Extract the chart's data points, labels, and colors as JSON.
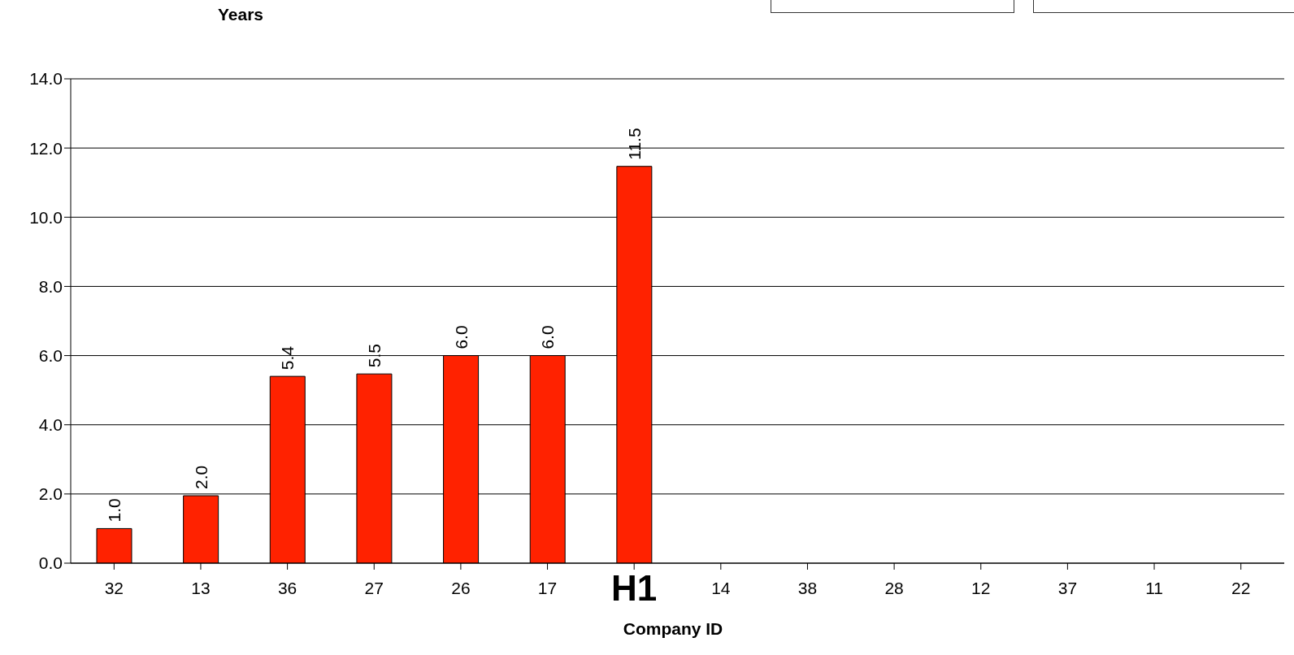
{
  "chart_data": {
    "type": "bar",
    "ylabel": "Years",
    "xlabel": "Company ID",
    "categories": [
      "32",
      "13",
      "36",
      "27",
      "26",
      "17",
      "H1",
      "14",
      "38",
      "28",
      "12",
      "37",
      "11",
      "22"
    ],
    "values": [
      1.0,
      1.95,
      5.4,
      5.47,
      6.0,
      6.0,
      11.47,
      null,
      null,
      null,
      null,
      null,
      null,
      null
    ],
    "value_labels": [
      "1.0",
      "2.0",
      "5.4",
      "5.5",
      "6.0",
      "6.0",
      "11.5",
      null,
      null,
      null,
      null,
      null,
      null,
      null
    ],
    "color": "#ff2200",
    "ylim": [
      0,
      14
    ],
    "yticks": [
      {
        "value": 0,
        "label": "0.0"
      },
      {
        "value": 2,
        "label": "2.0"
      },
      {
        "value": 4,
        "label": "4.0"
      },
      {
        "value": 6,
        "label": "6.0"
      },
      {
        "value": 8,
        "label": "8.0"
      },
      {
        "value": 10,
        "label": "10.0"
      },
      {
        "value": 12,
        "label": "12.0"
      },
      {
        "value": 14,
        "label": "14.0"
      }
    ],
    "grid": "y",
    "legend": false
  }
}
